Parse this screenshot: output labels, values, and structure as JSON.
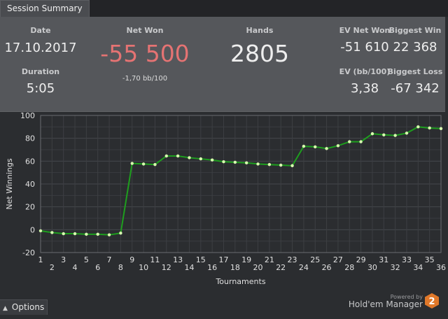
{
  "tab": {
    "label": "Session Summary"
  },
  "summary": {
    "date_label": "Date",
    "date_value": "17.10.2017",
    "duration_label": "Duration",
    "duration_value": "5:05",
    "net_won_label": "Net Won",
    "net_won_value": "-55 500",
    "net_won_bb": "-1,70 bb/100",
    "hands_label": "Hands",
    "hands_value": "2805",
    "ev_net_won_label": "EV Net Won",
    "ev_net_won_value": "-51 610",
    "biggest_win_label": "Biggest Win",
    "biggest_win_value": "22 368",
    "ev_bb_label": "EV (bb/100)",
    "ev_bb_value": "3,38",
    "biggest_loss_label": "Biggest Loss",
    "biggest_loss_value": "-67 342"
  },
  "colors": {
    "negative": "#e57373",
    "line": "#1e9e1e",
    "point": "#d8ffb0"
  },
  "chart_data": {
    "type": "line",
    "xlabel": "Tournaments",
    "ylabel": "Net Winnings",
    "xlim": [
      1,
      36
    ],
    "ylim": [
      -20,
      100
    ],
    "yticks": [
      -20,
      0,
      20,
      40,
      60,
      80,
      100
    ],
    "xticks": [
      1,
      2,
      3,
      4,
      5,
      6,
      7,
      8,
      9,
      10,
      11,
      12,
      13,
      14,
      15,
      16,
      17,
      18,
      19,
      20,
      21,
      22,
      23,
      24,
      25,
      26,
      27,
      28,
      29,
      30,
      31,
      32,
      33,
      34,
      35,
      36
    ],
    "grid": true,
    "x": [
      1,
      2,
      3,
      4,
      5,
      6,
      7,
      8,
      9,
      10,
      11,
      12,
      13,
      14,
      15,
      16,
      17,
      18,
      19,
      20,
      21,
      22,
      23,
      24,
      25,
      26,
      27,
      28,
      29,
      30,
      31,
      32,
      33,
      34,
      35,
      36
    ],
    "values": [
      -1,
      -2.5,
      -3.5,
      -3.5,
      -4,
      -4,
      -4.5,
      -3,
      58,
      57.5,
      57,
      64.5,
      64.5,
      63,
      62,
      61,
      59.5,
      59,
      58.5,
      57.5,
      57,
      56.5,
      56,
      73,
      72.5,
      71,
      73.5,
      77,
      77,
      84,
      83,
      82.5,
      84.5,
      90,
      89,
      88.5
    ]
  },
  "footer": {
    "options_label": "Options",
    "powered_by": "Powered by",
    "brand": "Hold'em Manager",
    "logo_number": "2"
  }
}
